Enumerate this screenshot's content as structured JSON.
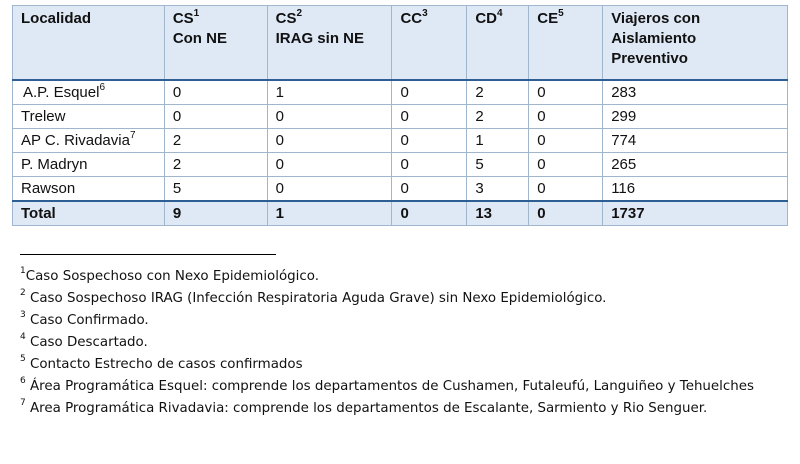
{
  "table": {
    "headers": [
      {
        "text": "Localidad",
        "sup": "",
        "line2": "",
        "line3": ""
      },
      {
        "text": "CS",
        "sup": "1",
        "line2": "Con  NE",
        "line3": ""
      },
      {
        "text": "CS",
        "sup": "2",
        "line2": "IRAG sin NE",
        "line3": ""
      },
      {
        "text": "CC",
        "sup": "3",
        "line2": "",
        "line3": ""
      },
      {
        "text": "CD",
        "sup": "4",
        "line2": "",
        "line3": ""
      },
      {
        "text": "CE",
        "sup": "5",
        "line2": "",
        "line3": ""
      },
      {
        "text": "Viajeros con",
        "sup": "",
        "line2": "Aislamiento",
        "line3": "Preventivo"
      }
    ],
    "rows": [
      {
        "name": "A.P. Esquel",
        "sup": "6",
        "cells": [
          "0",
          "1",
          "0",
          "2",
          "0",
          "283"
        ]
      },
      {
        "name": "Trelew",
        "sup": "",
        "cells": [
          "0",
          "0",
          "0",
          "2",
          "0",
          "299"
        ]
      },
      {
        "name": "AP C. Rivadavia",
        "sup": "7",
        "cells": [
          "2",
          "0",
          "0",
          "1",
          "0",
          "774"
        ]
      },
      {
        "name": "P. Madryn",
        "sup": "",
        "cells": [
          "2",
          "0",
          "0",
          "5",
          "0",
          "265"
        ]
      },
      {
        "name": "Rawson",
        "sup": "",
        "cells": [
          "5",
          "0",
          "0",
          "3",
          "0",
          "116"
        ]
      }
    ],
    "total": {
      "name": "Total",
      "cells": [
        "9",
        "1",
        "0",
        "13",
        "0",
        "1737"
      ]
    }
  },
  "footnotes": [
    {
      "sup": "1",
      "text": "Caso Sospechoso con Nexo Epidemiológico."
    },
    {
      "sup": "2",
      "text": " Caso Sospechoso IRAG (Infección Respiratoria Aguda Grave) sin Nexo Epidemiológico."
    },
    {
      "sup": "3",
      "text": " Caso Confirmado."
    },
    {
      "sup": "4",
      "text": " Caso Descartado."
    },
    {
      "sup": "5",
      "text": " Contacto Estrecho de casos confirmados"
    },
    {
      "sup": "6",
      "text": " Área Programática Esquel: comprende los departamentos de Cushamen, Futaleufú, Languiñeo y Tehuelches"
    },
    {
      "sup": "7",
      "text": " Area Programática  Rivadavia: comprende los departamentos de Escalante, Sarmiento y Rio Senguer."
    }
  ]
}
